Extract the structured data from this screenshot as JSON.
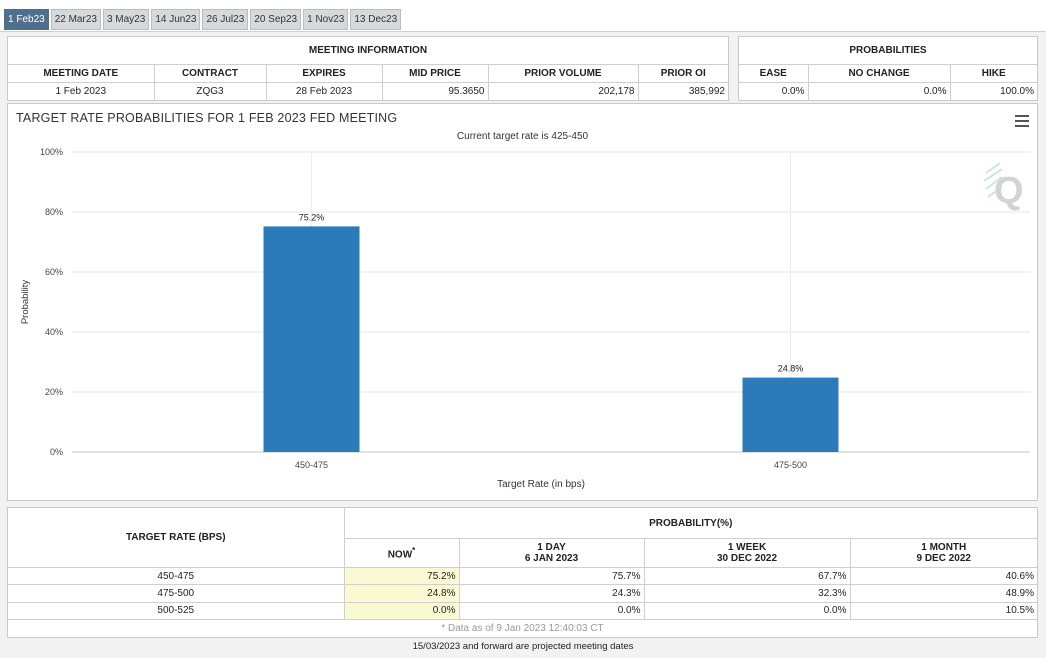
{
  "tabs": [
    "1 Feb23",
    "22 Mar23",
    "3 May23",
    "14 Jun23",
    "26 Jul23",
    "20 Sep23",
    "1 Nov23",
    "13 Dec23"
  ],
  "meeting_info": {
    "title": "MEETING INFORMATION",
    "columns": [
      "MEETING DATE",
      "CONTRACT",
      "EXPIRES",
      "MID PRICE",
      "PRIOR VOLUME",
      "PRIOR OI"
    ],
    "values": [
      "1 Feb 2023",
      "ZQG3",
      "28 Feb 2023",
      "95.3650",
      "202,178",
      "385,992"
    ]
  },
  "probabilities": {
    "title": "PROBABILITIES",
    "columns": [
      "EASE",
      "NO CHANGE",
      "HIKE"
    ],
    "values": [
      "0.0%",
      "0.0%",
      "100.0%"
    ]
  },
  "chart_data": {
    "type": "bar",
    "title": "TARGET RATE PROBABILITIES FOR 1 FEB 2023 FED MEETING",
    "subtitle": "Current target rate is 425-450",
    "categories": [
      "450-475",
      "475-500"
    ],
    "values": [
      75.2,
      24.8
    ],
    "data_labels": [
      "75.2%",
      "24.8%"
    ],
    "xlabel": "Target Rate (in bps)",
    "ylabel": "Probability",
    "ylim": [
      0,
      100
    ],
    "y_ticks": [
      "0%",
      "20%",
      "40%",
      "60%",
      "80%",
      "100%"
    ],
    "grid": true,
    "bar_color": "#2b7bba",
    "watermark": "Q"
  },
  "prob_table": {
    "left_header": "TARGET RATE (BPS)",
    "group_header": "PROBABILITY(%)",
    "col_now": "NOW",
    "col_now_mark": "*",
    "cols": [
      {
        "line1": "1 DAY",
        "line2": "6 JAN 2023"
      },
      {
        "line1": "1 WEEK",
        "line2": "30 DEC 2022"
      },
      {
        "line1": "1 MONTH",
        "line2": "9 DEC 2022"
      }
    ],
    "rows": [
      {
        "rate": "450-475",
        "now": "75.2%",
        "d1": "75.7%",
        "w1": "67.7%",
        "m1": "40.6%"
      },
      {
        "rate": "475-500",
        "now": "24.8%",
        "d1": "24.3%",
        "w1": "32.3%",
        "m1": "48.9%"
      },
      {
        "rate": "500-525",
        "now": "0.0%",
        "d1": "0.0%",
        "w1": "0.0%",
        "m1": "10.5%"
      }
    ],
    "footnote": "* Data as of 9 Jan 2023 12:40:03 CT"
  },
  "projected_note": "15/03/2023 and forward are projected meeting dates"
}
